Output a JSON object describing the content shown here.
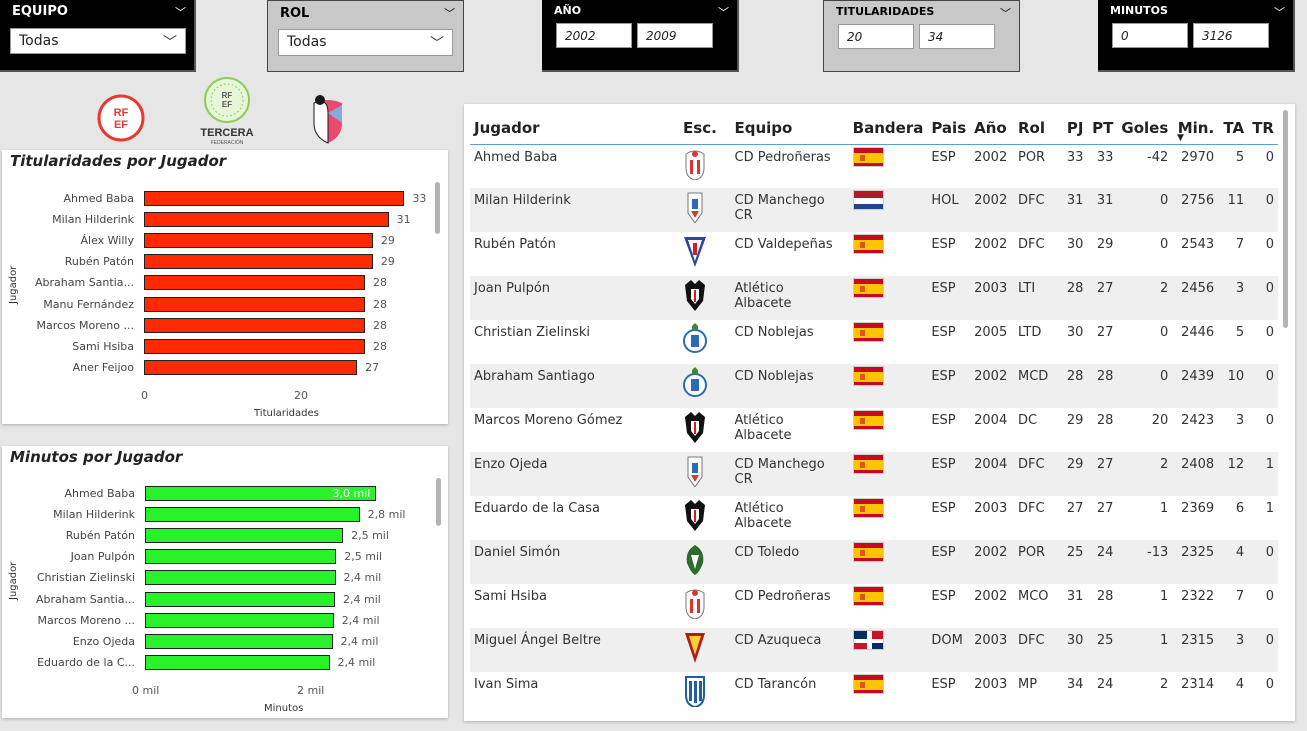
{
  "slicers": {
    "equipo": {
      "title": "EQUIPO",
      "value": "Todas"
    },
    "rol": {
      "title": "ROL",
      "value": "Todas"
    },
    "anio": {
      "title": "AÑO",
      "min": "2002",
      "max": "2009"
    },
    "titularidades": {
      "title": "TITULARIDADES",
      "min": "20",
      "max": "34"
    },
    "minutos": {
      "title": "MINUTOS",
      "min": "0",
      "max": "3126"
    }
  },
  "logos": {
    "rfef": "RF EF",
    "tercera": {
      "top": "RF EF",
      "name": "TERCERA",
      "sub": "FEDERACIÓN"
    }
  },
  "colors": {
    "red_bar": "#ff2a00",
    "green_bar": "#29f22a",
    "slicer_bg": "#000000",
    "header_line": "#5e9cd6"
  },
  "chart_titularidades": {
    "title": "Titularidades por Jugador",
    "ylabel": "Jugador",
    "xlabel": "Titularidades",
    "ticks": [
      "0",
      "20"
    ]
  },
  "chart_minutos": {
    "title": "Minutos por Jugador",
    "ylabel": "Jugador",
    "xlabel": "Minutos",
    "ticks": [
      "0 mil",
      "2 mil"
    ]
  },
  "chart_data": [
    {
      "type": "bar",
      "title": "Titularidades por Jugador",
      "xlabel": "Titularidades",
      "ylabel": "Jugador",
      "categories": [
        "Ahmed Baba",
        "Milan Hilderink",
        "Álex Willy",
        "Rubén Patón",
        "Abraham Santia...",
        "Manu Fernández",
        "Marcos Moreno ...",
        "Sami Hsiba",
        "Aner Feijoo"
      ],
      "values": [
        33,
        31,
        29,
        29,
        28,
        28,
        28,
        28,
        27
      ],
      "labels": [
        "33",
        "31",
        "29",
        "29",
        "28",
        "28",
        "28",
        "28",
        "27"
      ],
      "xlim": [
        0,
        37
      ]
    },
    {
      "type": "bar",
      "title": "Minutos por Jugador",
      "xlabel": "Minutos",
      "ylabel": "Jugador",
      "categories": [
        "Ahmed Baba",
        "Milan Hilderink",
        "Rubén Patón",
        "Joan Pulpón",
        "Christian Zielinski",
        "Abraham Santia...",
        "Marcos Moreno ...",
        "Enzo Ojeda",
        "Eduardo de la C..."
      ],
      "values": [
        2970,
        2756,
        2543,
        2456,
        2446,
        2439,
        2423,
        2408,
        2369
      ],
      "labels": [
        "3,0 mil",
        "2,8 mil",
        "2,5 mil",
        "2,5 mil",
        "2,4 mil",
        "2,4 mil",
        "2,4 mil",
        "2,4 mil",
        "2,4 mil"
      ],
      "xlim": [
        0,
        3800
      ]
    }
  ],
  "table": {
    "headers": [
      "Jugador",
      "Esc.",
      "Equipo",
      "Bandera",
      "Pais",
      "Año",
      "Rol",
      "PJ",
      "PT",
      "Goles",
      "Min.",
      "TA",
      "TR"
    ],
    "rows": [
      {
        "jugador": "Ahmed Baba",
        "crest": "pedroneras-crest",
        "equipo": "CD Pedroñeras",
        "flag": "spain-flag",
        "pais": "ESP",
        "anio": "2002",
        "rol": "POR",
        "pj": "33",
        "pt": "33",
        "goles": "-42",
        "min": "2970",
        "ta": "5",
        "tr": "0"
      },
      {
        "jugador": "Milan Hilderink",
        "crest": "manchego-crest",
        "equipo": "CD Manchego CR",
        "flag": "netherlands-flag",
        "pais": "HOL",
        "anio": "2002",
        "rol": "DFC",
        "pj": "31",
        "pt": "31",
        "goles": "0",
        "min": "2756",
        "ta": "11",
        "tr": "0"
      },
      {
        "jugador": "Rubén Patón",
        "crest": "valdepenas-crest",
        "equipo": "CD Valdepeñas",
        "flag": "spain-flag",
        "pais": "ESP",
        "anio": "2002",
        "rol": "DFC",
        "pj": "30",
        "pt": "29",
        "goles": "0",
        "min": "2543",
        "ta": "7",
        "tr": "0"
      },
      {
        "jugador": "Joan Pulpón",
        "crest": "albacete-crest",
        "equipo": "Atlético Albacete",
        "flag": "spain-flag",
        "pais": "ESP",
        "anio": "2003",
        "rol": "LTI",
        "pj": "28",
        "pt": "27",
        "goles": "2",
        "min": "2456",
        "ta": "3",
        "tr": "0"
      },
      {
        "jugador": "Christian Zielinski",
        "crest": "noblejas-crest",
        "equipo": "CD Noblejas",
        "flag": "spain-flag",
        "pais": "ESP",
        "anio": "2005",
        "rol": "LTD",
        "pj": "30",
        "pt": "27",
        "goles": "0",
        "min": "2446",
        "ta": "5",
        "tr": "0"
      },
      {
        "jugador": "Abraham Santiago",
        "crest": "noblejas-crest",
        "equipo": "CD Noblejas",
        "flag": "spain-flag",
        "pais": "ESP",
        "anio": "2002",
        "rol": "MCD",
        "pj": "28",
        "pt": "28",
        "goles": "0",
        "min": "2439",
        "ta": "10",
        "tr": "0"
      },
      {
        "jugador": "Marcos Moreno Gómez",
        "crest": "albacete-crest",
        "equipo": "Atlético Albacete",
        "flag": "spain-flag",
        "pais": "ESP",
        "anio": "2004",
        "rol": "DC",
        "pj": "29",
        "pt": "28",
        "goles": "20",
        "min": "2423",
        "ta": "3",
        "tr": "0"
      },
      {
        "jugador": "Enzo Ojeda",
        "crest": "manchego-crest",
        "equipo": "CD Manchego CR",
        "flag": "spain-flag",
        "pais": "ESP",
        "anio": "2004",
        "rol": "DFC",
        "pj": "29",
        "pt": "27",
        "goles": "2",
        "min": "2408",
        "ta": "12",
        "tr": "1"
      },
      {
        "jugador": "Eduardo de la Casa",
        "crest": "albacete-crest",
        "equipo": "Atlético Albacete",
        "flag": "spain-flag",
        "pais": "ESP",
        "anio": "2003",
        "rol": "DFC",
        "pj": "27",
        "pt": "27",
        "goles": "1",
        "min": "2369",
        "ta": "6",
        "tr": "1"
      },
      {
        "jugador": "Daniel Simón",
        "crest": "toledo-crest",
        "equipo": "CD Toledo",
        "flag": "spain-flag",
        "pais": "ESP",
        "anio": "2002",
        "rol": "POR",
        "pj": "25",
        "pt": "24",
        "goles": "-13",
        "min": "2325",
        "ta": "4",
        "tr": "0"
      },
      {
        "jugador": "Sami Hsiba",
        "crest": "pedroneras-crest",
        "equipo": "CD Pedroñeras",
        "flag": "spain-flag",
        "pais": "ESP",
        "anio": "2002",
        "rol": "MCO",
        "pj": "31",
        "pt": "28",
        "goles": "1",
        "min": "2322",
        "ta": "7",
        "tr": "0"
      },
      {
        "jugador": "Miguel Ángel Beltre",
        "crest": "azuqueca-crest",
        "equipo": "CD Azuqueca",
        "flag": "dominican-flag",
        "pais": "DOM",
        "anio": "2003",
        "rol": "DFC",
        "pj": "30",
        "pt": "25",
        "goles": "1",
        "min": "2315",
        "ta": "3",
        "tr": "0"
      },
      {
        "jugador": "Ivan Sima",
        "crest": "tarancon-crest",
        "equipo": "CD Tarancón",
        "flag": "spain-flag",
        "pais": "ESP",
        "anio": "2003",
        "rol": "MP",
        "pj": "34",
        "pt": "24",
        "goles": "2",
        "min": "2314",
        "ta": "4",
        "tr": "0"
      }
    ]
  }
}
